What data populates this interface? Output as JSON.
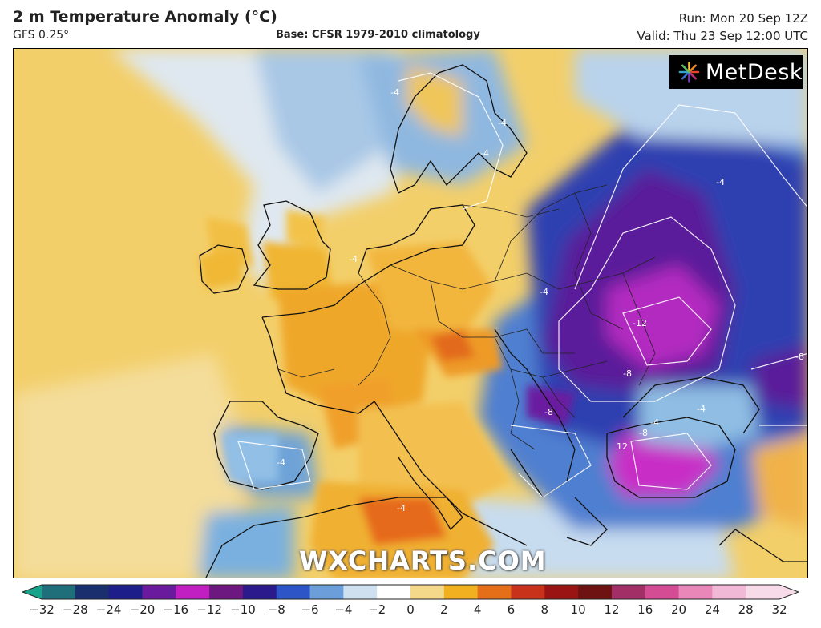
{
  "header": {
    "title": "2 m Temperature Anomaly (°C)",
    "model": "GFS 0.25°",
    "base": "Base: CFSR 1979-2010 climatology",
    "run": "Run: Mon 20 Sep 12Z",
    "valid": "Valid: Thu 23 Sep 12:00 UTC"
  },
  "logo": {
    "text": "MetDesk",
    "icon": "pinwheel-icon"
  },
  "watermark": "WXCHARTS.COM",
  "map": {
    "contour_labels": [
      "-4",
      "-4",
      "-4",
      "-4",
      "-4",
      "-4",
      "-12",
      "-8",
      "-8",
      "-8",
      "12",
      "-8",
      "-4",
      "-4",
      "-4",
      "-4"
    ]
  },
  "legend": {
    "ticks": [
      "−32",
      "−28",
      "−24",
      "−20",
      "−16",
      "−12",
      "−10",
      "−8",
      "−6",
      "−4",
      "−2",
      "0",
      "2",
      "4",
      "6",
      "8",
      "10",
      "12",
      "16",
      "20",
      "24",
      "28",
      "32"
    ],
    "colors": [
      "#17a38a",
      "#1f6f7a",
      "#1a2f6e",
      "#1e1e8a",
      "#6a1a9c",
      "#c21fc2",
      "#6c1880",
      "#2a1a8c",
      "#2d55c8",
      "#6c9ed9",
      "#cfe1f0",
      "#ffffff",
      "#f5d98a",
      "#f0b020",
      "#e56f19",
      "#c8311a",
      "#9a1414",
      "#6f1212",
      "#a32f67",
      "#d44c93",
      "#e987b8",
      "#f1b9d6",
      "#f7dbe9"
    ],
    "colors_meta": "color stops per band"
  }
}
